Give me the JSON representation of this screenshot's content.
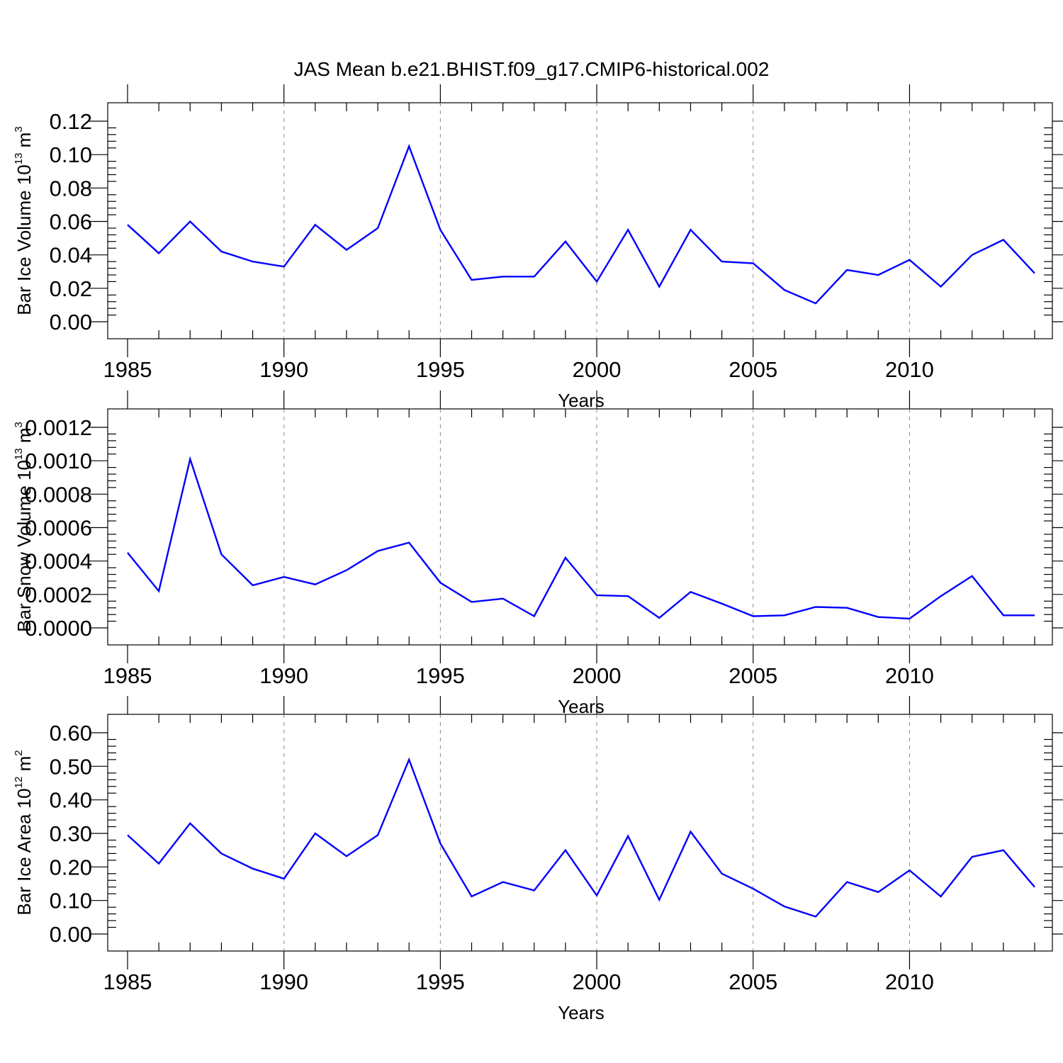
{
  "figure_title": "JAS Mean b.e21.BHIST.f09_g17.CMIP6-historical.002",
  "colors": {
    "series": "#0000ff",
    "axis": "#000000",
    "grid": "#888888"
  },
  "chart_data": [
    {
      "type": "line",
      "ylabel_main": "Bar Ice Volume 10",
      "ylabel_exp": "13",
      "ylabel_unit": " m",
      "ylabel_unit_exp": "3",
      "xlabel": "Years",
      "xlim": [
        1985,
        2014
      ],
      "ylim": [
        0,
        0.12
      ],
      "xticks": [
        1985,
        1990,
        1995,
        2000,
        2005,
        2010
      ],
      "xtick_labels": [
        "1985",
        "1990",
        "1995",
        "2000",
        "2005",
        "2010"
      ],
      "yticks": [
        0,
        0.02,
        0.04,
        0.06,
        0.08,
        0.1,
        0.12
      ],
      "ytick_labels": [
        "0.00",
        "0.02",
        "0.04",
        "0.06",
        "0.08",
        "0.10",
        "0.12"
      ],
      "grid": "vertical dashed at major x ticks",
      "x": [
        1985,
        1986,
        1987,
        1988,
        1989,
        1990,
        1991,
        1992,
        1993,
        1994,
        1995,
        1996,
        1997,
        1998,
        1999,
        2000,
        2001,
        2002,
        2003,
        2004,
        2005,
        2006,
        2007,
        2008,
        2009,
        2010,
        2011,
        2012,
        2013,
        2014
      ],
      "y": [
        0.058,
        0.041,
        0.06,
        0.042,
        0.036,
        0.033,
        0.058,
        0.043,
        0.056,
        0.105,
        0.055,
        0.025,
        0.027,
        0.027,
        0.048,
        0.024,
        0.055,
        0.021,
        0.055,
        0.036,
        0.035,
        0.019,
        0.011,
        0.031,
        0.028,
        0.037,
        0.021,
        0.04,
        0.049,
        0.029
      ]
    },
    {
      "type": "line",
      "ylabel_main": "Bar Snow Volume 10",
      "ylabel_exp": "13",
      "ylabel_unit": " m",
      "ylabel_unit_exp": "3",
      "xlabel": "Years",
      "xlim": [
        1985,
        2014
      ],
      "ylim": [
        0,
        0.0012
      ],
      "xticks": [
        1985,
        1990,
        1995,
        2000,
        2005,
        2010
      ],
      "xtick_labels": [
        "1985",
        "1990",
        "1995",
        "2000",
        "2005",
        "2010"
      ],
      "yticks": [
        0,
        0.0002,
        0.0004,
        0.0006,
        0.0008,
        0.001,
        0.0012
      ],
      "ytick_labels": [
        "0.0000",
        "0.0002",
        "0.0004",
        "0.0006",
        "0.0008",
        "0.0010",
        "0.0012"
      ],
      "grid": "vertical dashed at major x ticks",
      "x": [
        1985,
        1986,
        1987,
        1988,
        1989,
        1990,
        1991,
        1992,
        1993,
        1994,
        1995,
        1996,
        1997,
        1998,
        1999,
        2000,
        2001,
        2002,
        2003,
        2004,
        2005,
        2006,
        2007,
        2008,
        2009,
        2010,
        2011,
        2012,
        2013,
        2014
      ],
      "y": [
        0.00045,
        0.00022,
        0.00101,
        0.00044,
        0.000255,
        0.000305,
        0.00026,
        0.000345,
        0.00046,
        0.00051,
        0.00027,
        0.000155,
        0.000175,
        7e-05,
        0.00042,
        0.000195,
        0.00019,
        6e-05,
        0.000215,
        0.000145,
        7e-05,
        7.5e-05,
        0.000125,
        0.00012,
        6.5e-05,
        5.5e-05,
        0.00019,
        0.00031,
        7.5e-05,
        7.5e-05
      ]
    },
    {
      "type": "line",
      "ylabel_main": "Bar Ice Area 10",
      "ylabel_exp": "12",
      "ylabel_unit": " m",
      "ylabel_unit_exp": "2",
      "xlabel": "Years",
      "xlim": [
        1985,
        2014
      ],
      "ylim": [
        0,
        0.6
      ],
      "xticks": [
        1985,
        1990,
        1995,
        2000,
        2005,
        2010
      ],
      "xtick_labels": [
        "1985",
        "1990",
        "1995",
        "2000",
        "2005",
        "2010"
      ],
      "yticks": [
        0,
        0.1,
        0.2,
        0.3,
        0.4,
        0.5,
        0.6
      ],
      "ytick_labels": [
        "0.00",
        "0.10",
        "0.20",
        "0.30",
        "0.40",
        "0.50",
        "0.60"
      ],
      "grid": "vertical dashed at major x ticks",
      "x": [
        1985,
        1986,
        1987,
        1988,
        1989,
        1990,
        1991,
        1992,
        1993,
        1994,
        1995,
        1996,
        1997,
        1998,
        1999,
        2000,
        2001,
        2002,
        2003,
        2004,
        2005,
        2006,
        2007,
        2008,
        2009,
        2010,
        2011,
        2012,
        2013,
        2014
      ],
      "y": [
        0.295,
        0.21,
        0.33,
        0.24,
        0.195,
        0.165,
        0.3,
        0.232,
        0.295,
        0.52,
        0.27,
        0.112,
        0.155,
        0.13,
        0.25,
        0.115,
        0.292,
        0.102,
        0.305,
        0.18,
        0.135,
        0.082,
        0.052,
        0.155,
        0.125,
        0.19,
        0.112,
        0.23,
        0.25,
        0.14
      ]
    }
  ]
}
